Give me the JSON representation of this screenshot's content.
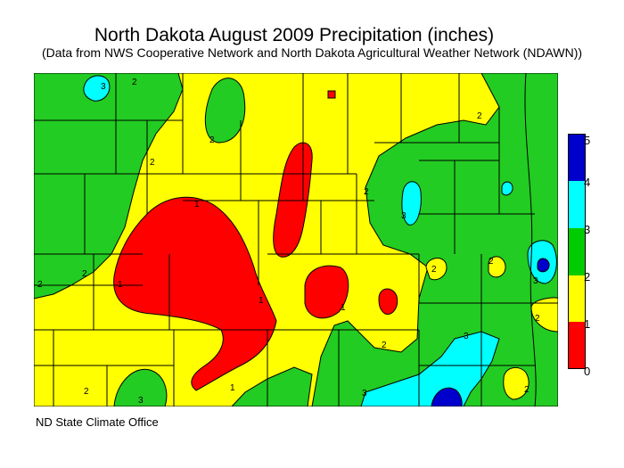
{
  "title": "North Dakota August 2009 Precipitation (inches)",
  "subtitle": "(Data from NWS Cooperative Network and North Dakota Agricultural Weather Network (NDAWN))",
  "credit": "ND State Climate Office",
  "legend": {
    "labels": [
      "0",
      "1",
      "2",
      "3",
      "4",
      "5"
    ],
    "bands": [
      {
        "range": "0-1",
        "color": "#ff0000"
      },
      {
        "range": "1-2",
        "color": "#ffff00"
      },
      {
        "range": "2-3",
        "color": "#00cc00"
      },
      {
        "range": "3-4",
        "color": "#00ffff"
      },
      {
        "range": "4-5",
        "color": "#0000cc"
      }
    ]
  },
  "colors": {
    "red": "#ff0000",
    "yellow": "#ffff00",
    "green": "#22cc22",
    "cyan": "#00ffff",
    "blue": "#0000cc"
  },
  "contour_labels": [
    "1",
    "1",
    "1",
    "1",
    "1",
    "2",
    "2",
    "2",
    "2",
    "2",
    "2",
    "2",
    "2",
    "2",
    "2",
    "2",
    "2",
    "2",
    "3",
    "3",
    "3",
    "3",
    "3",
    "3"
  ]
}
